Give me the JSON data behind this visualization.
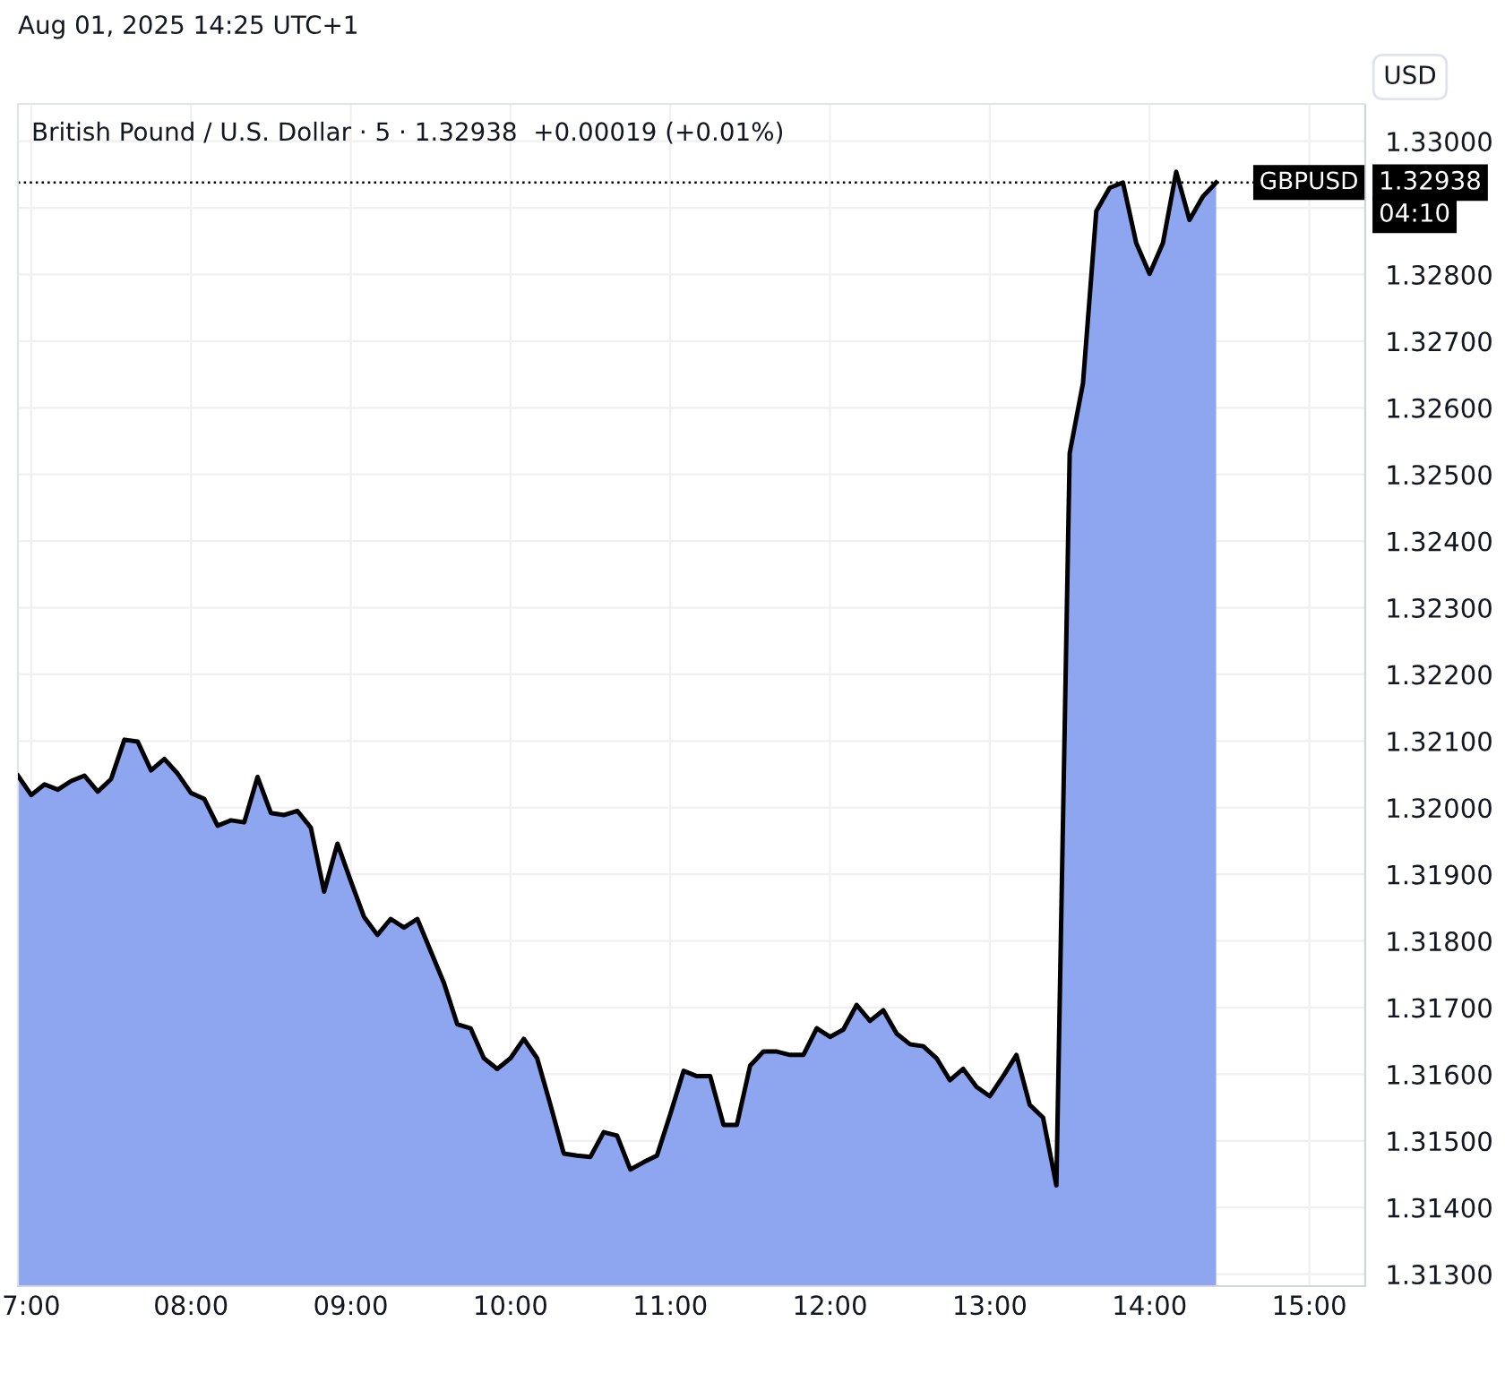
{
  "chart_data": {
    "type": "area",
    "title": "British Pound / U.S. Dollar · 5 · 1.32938  +0.00019 (+0.01%)",
    "annotations": [
      "Aug 01, 2025 14:25 UTC+1",
      "USD",
      "1.32938",
      "04:10"
    ],
    "x": [
      6.9167,
      7.0,
      7.0833,
      7.1667,
      7.25,
      7.3333,
      7.4167,
      7.5,
      7.5833,
      7.6667,
      7.75,
      7.8333,
      7.9167,
      8.0,
      8.0833,
      8.1667,
      8.25,
      8.3333,
      8.4167,
      8.5,
      8.5833,
      8.6667,
      8.75,
      8.8333,
      8.9167,
      9.0,
      9.0833,
      9.1667,
      9.25,
      9.3333,
      9.4167,
      9.5,
      9.5833,
      9.6667,
      9.75,
      9.8333,
      9.9167,
      10.0,
      10.0833,
      10.1667,
      10.25,
      10.3333,
      10.4167,
      10.5,
      10.5833,
      10.6667,
      10.75,
      10.8333,
      10.9167,
      11.0,
      11.0833,
      11.1667,
      11.25,
      11.3333,
      11.4167,
      11.5,
      11.5833,
      11.6667,
      11.75,
      11.8333,
      11.9167,
      12.0,
      12.0833,
      12.1667,
      12.25,
      12.3333,
      12.4167,
      12.5,
      12.5833,
      12.6667,
      12.75,
      12.8333,
      12.9167,
      13.0,
      13.0833,
      13.1667,
      13.25,
      13.3333,
      13.4167,
      13.5,
      13.5833,
      13.6667,
      13.75,
      13.8333,
      13.9167,
      14.0,
      14.0833,
      14.1667,
      14.25,
      14.3333,
      14.4167
    ],
    "series": [
      {
        "color": "#000000",
        "values": [
          1.32048,
          1.32019,
          1.32035,
          1.32027,
          1.3204,
          1.32048,
          1.32024,
          1.32043,
          1.32102,
          1.32099,
          1.32056,
          1.32073,
          1.32051,
          1.32022,
          1.32013,
          1.31973,
          1.31981,
          1.31978,
          1.32046,
          1.31992,
          1.31989,
          1.31995,
          1.3197,
          1.31874,
          1.31946,
          1.3189,
          1.31836,
          1.31809,
          1.31833,
          1.3182,
          1.31833,
          1.31785,
          1.31737,
          1.31675,
          1.31669,
          1.31624,
          1.31608,
          1.31624,
          1.31653,
          1.31624,
          1.31554,
          1.31481,
          1.31478,
          1.31476,
          1.31513,
          1.31508,
          1.31457,
          1.31468,
          1.31478,
          1.3154,
          1.31605,
          1.31597,
          1.31597,
          1.31524,
          1.31524,
          1.31613,
          1.31634,
          1.31634,
          1.31629,
          1.31629,
          1.31669,
          1.31656,
          1.31667,
          1.31704,
          1.3168,
          1.31696,
          1.31661,
          1.31645,
          1.31642,
          1.31624,
          1.31591,
          1.31608,
          1.31581,
          1.31567,
          1.31597,
          1.31629,
          1.31554,
          1.31535,
          1.31433,
          1.32532,
          1.32637,
          1.32895,
          1.3293,
          1.32938,
          1.32847,
          1.32801,
          1.32847,
          1.32954,
          1.32882,
          1.32917,
          1.32938
        ]
      }
    ],
    "xlim": [
      6.9167,
      15.35
    ],
    "xticks": [
      {
        "value": 7,
        "label": "7:00"
      },
      {
        "value": 8,
        "label": "08:00"
      },
      {
        "value": 9,
        "label": "09:00"
      },
      {
        "value": 10,
        "label": "10:00"
      },
      {
        "value": 11,
        "label": "11:00"
      },
      {
        "value": 12,
        "label": "12:00"
      },
      {
        "value": 13,
        "label": "13:00"
      },
      {
        "value": 14,
        "label": "14:00"
      },
      {
        "value": 15,
        "label": "15:00"
      }
    ],
    "ylim": [
      1.31282,
      1.33056
    ],
    "yticks": [
      {
        "value": 1.313,
        "label": "1.31300"
      },
      {
        "value": 1.314,
        "label": "1.31400"
      },
      {
        "value": 1.315,
        "label": "1.31500"
      },
      {
        "value": 1.316,
        "label": "1.31600"
      },
      {
        "value": 1.317,
        "label": "1.31700"
      },
      {
        "value": 1.318,
        "label": "1.31800"
      },
      {
        "value": 1.319,
        "label": "1.31900"
      },
      {
        "value": 1.32,
        "label": "1.32000"
      },
      {
        "value": 1.321,
        "label": "1.32100"
      },
      {
        "value": 1.322,
        "label": "1.32200"
      },
      {
        "value": 1.323,
        "label": "1.32300"
      },
      {
        "value": 1.324,
        "label": "1.32400"
      },
      {
        "value": 1.325,
        "label": "1.32500"
      },
      {
        "value": 1.326,
        "label": "1.32600"
      },
      {
        "value": 1.327,
        "label": "1.32700"
      },
      {
        "value": 1.328,
        "label": "1.32800"
      },
      {
        "value": 1.329,
        "label": null
      },
      {
        "value": 1.33,
        "label": "1.33000"
      }
    ],
    "ref_lines": [
      {
        "axis": "y",
        "value": 1.32938,
        "label": "GBPUSD",
        "line_style": "dotted",
        "color": "#000000"
      }
    ],
    "grid": true,
    "line_style": "solid",
    "marker": "none"
  }
}
